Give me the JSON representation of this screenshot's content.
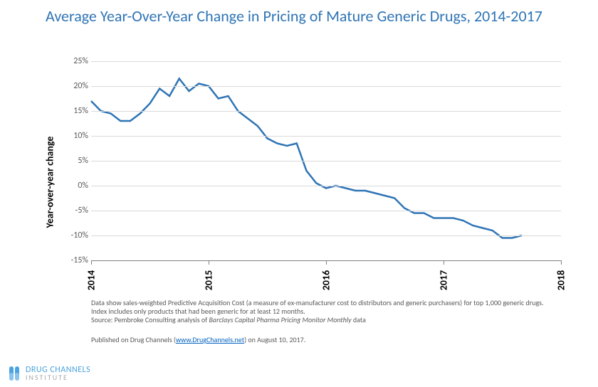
{
  "title": {
    "text": "Average Year-Over-Year Change in Pricing of Mature Generic Drugs, 2014-2017",
    "color": "#2e74b5",
    "fontsize": 22
  },
  "chart": {
    "type": "line",
    "y_axis": {
      "title": "Year-over-year change",
      "title_fontsize": 14,
      "ticks": [
        -15,
        -10,
        -5,
        0,
        5,
        10,
        15,
        20,
        25
      ],
      "tick_labels": [
        "-15%",
        "-10%",
        "-5%",
        "0%",
        "5%",
        "10%",
        "15%",
        "20%",
        "25%"
      ],
      "tick_fontsize": 12,
      "ylim_min": -15,
      "ylim_max": 25,
      "gridline_color": "#d9d9d9",
      "axis_line_color": "#808080",
      "tick_label_color": "#595959"
    },
    "x_axis": {
      "min": 2014.0,
      "max": 2018.0,
      "ticks": [
        2014,
        2015,
        2016,
        2017,
        2018
      ],
      "tick_labels": [
        "2014",
        "2015",
        "2016",
        "2017",
        "2018"
      ],
      "tick_fontsize": 14,
      "tick_label_color": "#000000",
      "tick_color": "#808080"
    },
    "series": {
      "color": "#2e74b5",
      "width": 2.5,
      "points": [
        [
          2014.0,
          17.0
        ],
        [
          2014.083,
          15.0
        ],
        [
          2014.167,
          14.5
        ],
        [
          2014.25,
          13.0
        ],
        [
          2014.333,
          13.0
        ],
        [
          2014.417,
          14.5
        ],
        [
          2014.5,
          16.5
        ],
        [
          2014.583,
          19.5
        ],
        [
          2014.667,
          18.0
        ],
        [
          2014.75,
          21.5
        ],
        [
          2014.833,
          19.0
        ],
        [
          2014.917,
          20.5
        ],
        [
          2015.0,
          20.0
        ],
        [
          2015.083,
          17.5
        ],
        [
          2015.167,
          18.0
        ],
        [
          2015.25,
          15.0
        ],
        [
          2015.333,
          13.5
        ],
        [
          2015.417,
          12.0
        ],
        [
          2015.5,
          9.5
        ],
        [
          2015.583,
          8.5
        ],
        [
          2015.667,
          8.0
        ],
        [
          2015.75,
          8.5
        ],
        [
          2015.833,
          3.0
        ],
        [
          2015.917,
          0.5
        ],
        [
          2016.0,
          -0.5
        ],
        [
          2016.083,
          0.0
        ],
        [
          2016.167,
          -0.5
        ],
        [
          2016.25,
          -1.0
        ],
        [
          2016.333,
          -1.0
        ],
        [
          2016.417,
          -1.5
        ],
        [
          2016.5,
          -2.0
        ],
        [
          2016.583,
          -2.5
        ],
        [
          2016.667,
          -4.5
        ],
        [
          2016.75,
          -5.5
        ],
        [
          2016.833,
          -5.5
        ],
        [
          2016.917,
          -6.5
        ],
        [
          2017.0,
          -6.5
        ],
        [
          2017.083,
          -6.5
        ],
        [
          2017.167,
          -7.0
        ],
        [
          2017.25,
          -8.0
        ],
        [
          2017.333,
          -8.5
        ],
        [
          2017.417,
          -9.0
        ],
        [
          2017.5,
          -10.5
        ],
        [
          2017.583,
          -10.5
        ],
        [
          2017.667,
          -10.0
        ]
      ]
    }
  },
  "footnotes": {
    "fontsize": 10,
    "color": "#595959",
    "line1": "Data show sales-weighted Predictive Acquisition Cost (a measure of ex-manufacturer cost to distributors and generic purchasers) for top 1,000 generic drugs.",
    "line2": "Index includes only products that had been generic for at least 12 months.",
    "line3_prefix": "Source: Pembroke Consulting analysis of ",
    "line3_italic": "Barclays Capital Pharma Pricing Monitor Monthly",
    "line3_suffix": " data",
    "pub_prefix": "Published on Drug Channels (",
    "pub_link": "www.DrugChannels.net",
    "pub_link_color": "#0563c1",
    "pub_suffix": ") on August 10, 2017."
  },
  "branding": {
    "top": "DRUG CHANNELS",
    "bottom": "INSTITUTE",
    "top_color": "#4aa3df",
    "bottom_color": "#a6a6a6",
    "top_fontsize": 12,
    "bottom_fontsize": 10,
    "icon_color": "#4aa3df"
  }
}
